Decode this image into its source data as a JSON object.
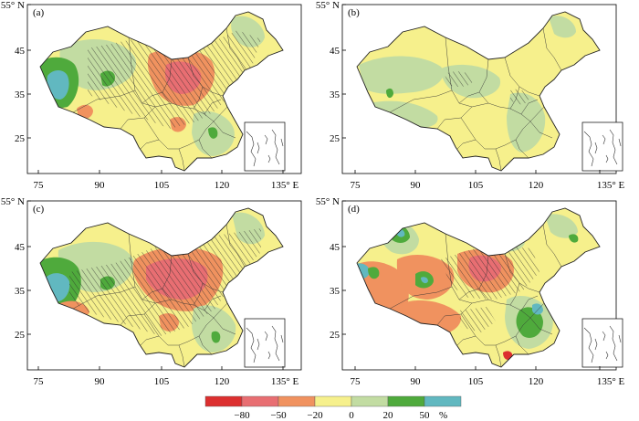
{
  "figure": {
    "lat_labels": [
      "55° N",
      "45",
      "35",
      "25"
    ],
    "lon_labels": [
      "75",
      "90",
      "105",
      "120",
      "135° E"
    ],
    "panels": [
      {
        "label": "(a)"
      },
      {
        "label": "(b)"
      },
      {
        "label": "(c)"
      },
      {
        "label": "(d)"
      }
    ]
  },
  "legend": {
    "tick_labels": [
      "−80",
      "−50",
      "−20",
      "0",
      "20",
      "50"
    ],
    "unit": "%",
    "colors": [
      "#dc2f2f",
      "#e86e72",
      "#f0925f",
      "#f6f08c",
      "#c2dca2",
      "#4faa3c",
      "#61b8c0"
    ]
  },
  "palette": {
    "strong_negative": "#dc2f2f",
    "negative": "#e86e72",
    "weak_negative": "#f0925f",
    "near_zero": "#f6f08c",
    "weak_positive": "#c2dca2",
    "positive": "#4faa3c",
    "strong_positive": "#61b8c0"
  }
}
